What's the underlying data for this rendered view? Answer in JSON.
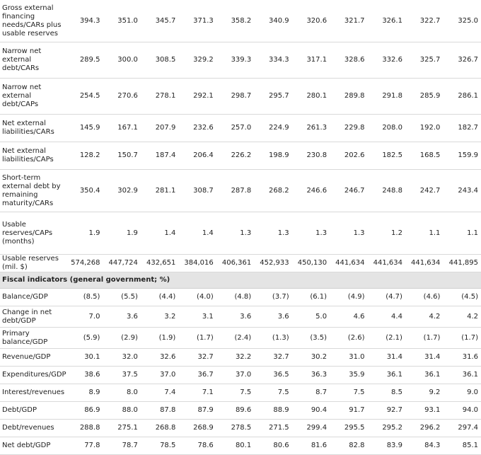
{
  "external_rows": [
    {
      "label": "Gross external financing needs/CARs plus usable reserves",
      "values": [
        "394.3",
        "351.0",
        "345.7",
        "371.3",
        "358.2",
        "340.9",
        "320.6",
        "321.7",
        "326.1",
        "322.7",
        "325.0"
      ]
    },
    {
      "label": "Narrow net external debt/CARs",
      "values": [
        "289.5",
        "300.0",
        "308.5",
        "329.2",
        "339.3",
        "334.3",
        "317.1",
        "328.6",
        "332.6",
        "325.7",
        "326.7"
      ]
    },
    {
      "label": "Narrow net external debt/CAPs",
      "values": [
        "254.5",
        "270.6",
        "278.1",
        "292.1",
        "298.7",
        "295.7",
        "280.1",
        "289.8",
        "291.8",
        "285.9",
        "286.1"
      ]
    },
    {
      "label": "Net external liabilities/CARs",
      "values": [
        "145.9",
        "167.1",
        "207.9",
        "232.6",
        "257.0",
        "224.9",
        "261.3",
        "229.8",
        "208.0",
        "192.0",
        "182.7"
      ]
    },
    {
      "label": "Net external liabilities/CAPs",
      "values": [
        "128.2",
        "150.7",
        "187.4",
        "206.4",
        "226.2",
        "198.9",
        "230.8",
        "202.6",
        "182.5",
        "168.5",
        "159.9"
      ]
    },
    {
      "label": "Short-term external debt by remaining maturity/CARs",
      "values": [
        "350.4",
        "302.9",
        "281.1",
        "308.7",
        "287.8",
        "268.2",
        "246.6",
        "246.7",
        "248.8",
        "242.7",
        "243.4"
      ]
    },
    {
      "label": "Usable reserves/CAPs (months)",
      "values": [
        "1.9",
        "1.9",
        "1.4",
        "1.4",
        "1.3",
        "1.3",
        "1.3",
        "1.3",
        "1.2",
        "1.1",
        "1.1"
      ]
    },
    {
      "label": "Usable reserves (mil. $)",
      "values": [
        "574,268",
        "447,724",
        "432,651",
        "384,016",
        "406,361",
        "452,933",
        "450,130",
        "441,634",
        "441,634",
        "441,634",
        "441,895"
      ]
    }
  ],
  "fiscal_section_title": "Fiscal indicators (general government; %)",
  "fiscal_rows": [
    {
      "label": "Balance/GDP",
      "values": [
        "(8.5)",
        "(5.5)",
        "(4.4)",
        "(4.0)",
        "(4.8)",
        "(3.7)",
        "(6.1)",
        "(4.9)",
        "(4.7)",
        "(4.6)",
        "(4.5)"
      ]
    },
    {
      "label": "Change in net debt/GDP",
      "values": [
        "7.0",
        "3.6",
        "3.2",
        "3.1",
        "3.6",
        "3.6",
        "5.0",
        "4.6",
        "4.4",
        "4.2",
        "4.2"
      ]
    },
    {
      "label": "Primary balance/GDP",
      "values": [
        "(5.9)",
        "(2.9)",
        "(1.9)",
        "(1.7)",
        "(2.4)",
        "(1.3)",
        "(3.5)",
        "(2.6)",
        "(2.1)",
        "(1.7)",
        "(1.7)"
      ]
    },
    {
      "label": "Revenue/GDP",
      "values": [
        "30.1",
        "32.0",
        "32.6",
        "32.7",
        "32.2",
        "32.7",
        "30.2",
        "31.0",
        "31.4",
        "31.4",
        "31.6"
      ]
    },
    {
      "label": "Expenditures/GDP",
      "values": [
        "38.6",
        "37.5",
        "37.0",
        "36.7",
        "37.0",
        "36.5",
        "36.3",
        "35.9",
        "36.1",
        "36.1",
        "36.1"
      ]
    },
    {
      "label": "Interest/revenues",
      "values": [
        "8.9",
        "8.0",
        "7.4",
        "7.1",
        "7.5",
        "7.5",
        "8.7",
        "7.5",
        "8.5",
        "9.2",
        "9.0"
      ]
    },
    {
      "label": "Debt/GDP",
      "values": [
        "86.9",
        "88.0",
        "87.8",
        "87.9",
        "89.6",
        "88.9",
        "90.4",
        "91.7",
        "92.7",
        "93.1",
        "94.0"
      ]
    },
    {
      "label": "Debt/revenues",
      "values": [
        "288.8",
        "275.1",
        "268.8",
        "268.9",
        "278.5",
        "271.5",
        "299.4",
        "295.5",
        "295.2",
        "296.2",
        "297.4"
      ]
    },
    {
      "label": "Net debt/GDP",
      "values": [
        "77.8",
        "78.7",
        "78.5",
        "78.6",
        "80.1",
        "80.6",
        "81.6",
        "82.8",
        "83.9",
        "84.3",
        "85.1"
      ]
    }
  ]
}
